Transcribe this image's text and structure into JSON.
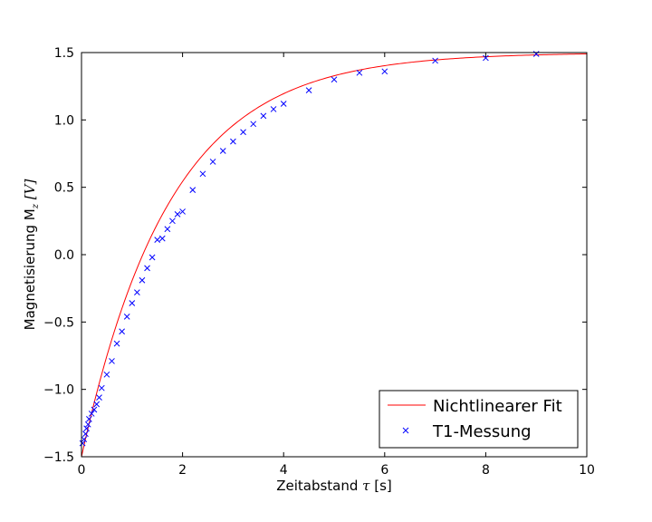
{
  "chart_data": {
    "type": "scatter",
    "xlabel": {
      "prefix": "Zeitabstand ",
      "symbol": "τ",
      "suffix": " [s]"
    },
    "ylabel": {
      "prefix": "Magnetisierung M",
      "subscript": "z",
      "suffix": " [V]"
    },
    "xlim": [
      0,
      10
    ],
    "ylim": [
      -1.5,
      1.5
    ],
    "xticks": [
      0,
      2,
      4,
      6,
      8,
      10
    ],
    "xtick_labels": [
      "0",
      "2",
      "4",
      "6",
      "8",
      "10"
    ],
    "yticks": [
      -1.5,
      -1.0,
      -0.5,
      0.0,
      0.5,
      1.0,
      1.5
    ],
    "ytick_labels": [
      "−1.5",
      "−1.0",
      "−0.5",
      "0.0",
      "0.5",
      "1.0",
      "1.5"
    ],
    "grid": false,
    "legend_position": "bottom-right",
    "series": [
      {
        "name": "Nichtlinearer Fit",
        "kind": "line",
        "color": "#ff0000",
        "model": {
          "form": "A*(1-2*exp(-x/T1))",
          "A": 1.5,
          "T1": 1.75
        }
      },
      {
        "name": "T1-Messung",
        "kind": "marker",
        "marker": "x",
        "color": "#0000ff",
        "x": [
          0.02,
          0.05,
          0.08,
          0.1,
          0.13,
          0.15,
          0.2,
          0.25,
          0.3,
          0.35,
          0.4,
          0.5,
          0.6,
          0.7,
          0.8,
          0.9,
          1.0,
          1.1,
          1.2,
          1.3,
          1.4,
          1.5,
          1.6,
          1.7,
          1.8,
          1.9,
          2.0,
          2.2,
          2.4,
          2.6,
          2.8,
          3.0,
          3.2,
          3.4,
          3.6,
          3.8,
          4.0,
          4.5,
          5.0,
          5.5,
          6.0,
          7.0,
          8.0,
          9.0
        ],
        "y": [
          -1.4,
          -1.37,
          -1.33,
          -1.29,
          -1.26,
          -1.22,
          -1.18,
          -1.15,
          -1.11,
          -1.06,
          -0.99,
          -0.89,
          -0.79,
          -0.66,
          -0.57,
          -0.46,
          -0.36,
          -0.28,
          -0.19,
          -0.1,
          -0.02,
          0.11,
          0.12,
          0.19,
          0.25,
          0.3,
          0.32,
          0.48,
          0.6,
          0.69,
          0.77,
          0.84,
          0.91,
          0.97,
          1.03,
          1.08,
          1.12,
          1.22,
          1.3,
          1.35,
          1.36,
          1.44,
          1.46,
          1.49
        ]
      }
    ]
  }
}
